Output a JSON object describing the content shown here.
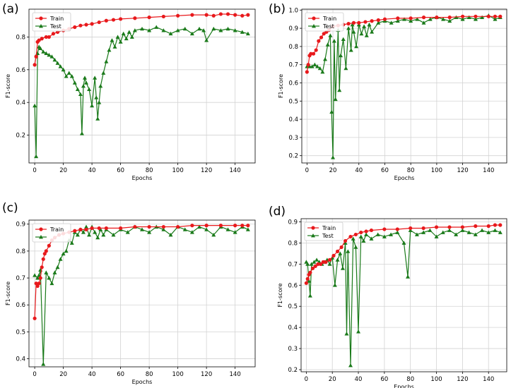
{
  "colors": {
    "train": "#e8191c",
    "test": "#1a7a1a",
    "grid": "#d3d3d3"
  },
  "chart_data": [
    {
      "panel": "(a)",
      "type": "line",
      "xlabel": "Epochs",
      "ylabel": "F1-score",
      "xlim": [
        -4,
        154
      ],
      "ylim": [
        0.03,
        0.97
      ],
      "xticks": [
        0,
        20,
        40,
        60,
        80,
        100,
        120,
        140
      ],
      "yticks": [
        0.2,
        0.4,
        0.6,
        0.8
      ],
      "legend": "top-left",
      "grid": true,
      "series": [
        {
          "name": "Train",
          "marker": "circle",
          "color": "#e8191c",
          "x": [
            0,
            1,
            2,
            3,
            5,
            8,
            10,
            13,
            16,
            20,
            24,
            28,
            32,
            36,
            40,
            45,
            50,
            55,
            60,
            70,
            80,
            90,
            100,
            110,
            120,
            125,
            130,
            135,
            140,
            145,
            149
          ],
          "y": [
            0.63,
            0.68,
            0.77,
            0.78,
            0.79,
            0.8,
            0.8,
            0.82,
            0.83,
            0.84,
            0.85,
            0.86,
            0.87,
            0.875,
            0.88,
            0.89,
            0.9,
            0.905,
            0.91,
            0.915,
            0.92,
            0.925,
            0.93,
            0.935,
            0.935,
            0.93,
            0.94,
            0.94,
            0.935,
            0.93,
            0.935
          ]
        },
        {
          "name": "Test",
          "marker": "triangle",
          "color": "#1a7a1a",
          "x": [
            0,
            1,
            2,
            3,
            4,
            6,
            8,
            10,
            12,
            14,
            16,
            18,
            20,
            22,
            24,
            26,
            28,
            30,
            32,
            33,
            34,
            35,
            36,
            38,
            40,
            42,
            43,
            44,
            45,
            46,
            48,
            50,
            52,
            54,
            56,
            58,
            60,
            62,
            64,
            66,
            68,
            70,
            75,
            80,
            85,
            90,
            95,
            100,
            105,
            110,
            115,
            118,
            120,
            125,
            130,
            135,
            140,
            145,
            149
          ],
          "y": [
            0.38,
            0.07,
            0.7,
            0.74,
            0.73,
            0.71,
            0.7,
            0.69,
            0.68,
            0.66,
            0.64,
            0.62,
            0.6,
            0.56,
            0.58,
            0.56,
            0.52,
            0.48,
            0.45,
            0.21,
            0.5,
            0.55,
            0.52,
            0.48,
            0.38,
            0.55,
            0.43,
            0.3,
            0.4,
            0.5,
            0.58,
            0.65,
            0.72,
            0.78,
            0.74,
            0.8,
            0.77,
            0.82,
            0.79,
            0.83,
            0.8,
            0.84,
            0.85,
            0.84,
            0.86,
            0.84,
            0.82,
            0.84,
            0.85,
            0.82,
            0.85,
            0.84,
            0.78,
            0.85,
            0.84,
            0.85,
            0.84,
            0.83,
            0.82
          ]
        }
      ]
    },
    {
      "panel": "(b)",
      "type": "line",
      "xlabel": "Epochs",
      "ylabel": "F1-score",
      "xlim": [
        -4,
        154
      ],
      "ylim": [
        0.16,
        1.005
      ],
      "xticks": [
        0,
        20,
        40,
        60,
        80,
        100,
        120,
        140
      ],
      "yticks": [
        0.2,
        0.3,
        0.4,
        0.5,
        0.6,
        0.7,
        0.8,
        0.9,
        1.0
      ],
      "legend": "top-left",
      "grid": true,
      "series": [
        {
          "name": "Train",
          "marker": "circle",
          "color": "#e8191c",
          "x": [
            0,
            1,
            2,
            3,
            5,
            7,
            9,
            11,
            13,
            15,
            17,
            20,
            24,
            28,
            32,
            36,
            40,
            45,
            50,
            55,
            60,
            70,
            80,
            90,
            100,
            110,
            120,
            130,
            140,
            145,
            149
          ],
          "y": [
            0.66,
            0.7,
            0.75,
            0.76,
            0.76,
            0.78,
            0.83,
            0.85,
            0.87,
            0.88,
            0.89,
            0.91,
            0.915,
            0.92,
            0.925,
            0.93,
            0.93,
            0.935,
            0.94,
            0.945,
            0.95,
            0.955,
            0.955,
            0.96,
            0.96,
            0.96,
            0.965,
            0.965,
            0.965,
            0.965,
            0.965
          ]
        },
        {
          "name": "Test",
          "marker": "triangle",
          "color": "#1a7a1a",
          "x": [
            0,
            2,
            4,
            6,
            8,
            10,
            12,
            14,
            16,
            18,
            19,
            20,
            21,
            22,
            24,
            25,
            26,
            28,
            30,
            32,
            34,
            35,
            36,
            38,
            40,
            42,
            44,
            46,
            48,
            50,
            55,
            60,
            65,
            70,
            75,
            80,
            85,
            90,
            95,
            100,
            105,
            110,
            115,
            120,
            125,
            130,
            135,
            140,
            145,
            149
          ],
          "y": [
            0.69,
            0.69,
            0.69,
            0.7,
            0.69,
            0.68,
            0.66,
            0.73,
            0.81,
            0.86,
            0.44,
            0.19,
            0.83,
            0.51,
            0.89,
            0.56,
            0.75,
            0.84,
            0.68,
            0.9,
            0.78,
            0.92,
            0.88,
            0.8,
            0.92,
            0.87,
            0.91,
            0.86,
            0.92,
            0.88,
            0.93,
            0.94,
            0.93,
            0.94,
            0.95,
            0.94,
            0.95,
            0.93,
            0.95,
            0.96,
            0.95,
            0.94,
            0.96,
            0.95,
            0.96,
            0.95,
            0.96,
            0.97,
            0.95,
            0.96
          ]
        }
      ]
    },
    {
      "panel": "(c)",
      "type": "line",
      "xlabel": "Epochs",
      "ylabel": "F1-score",
      "xlim": [
        -4,
        154
      ],
      "ylim": [
        0.37,
        0.915
      ],
      "xticks": [
        0,
        20,
        40,
        60,
        80,
        100,
        120,
        140
      ],
      "yticks": [
        0.4,
        0.5,
        0.6,
        0.7,
        0.8,
        0.9
      ],
      "legend": "top-left",
      "grid": true,
      "series": [
        {
          "name": "Train",
          "marker": "circle",
          "color": "#e8191c",
          "x": [
            0,
            1,
            2,
            3,
            4,
            5,
            6,
            7,
            8,
            10,
            12,
            14,
            17,
            20,
            24,
            28,
            32,
            36,
            40,
            45,
            50,
            60,
            70,
            80,
            90,
            100,
            110,
            120,
            130,
            140,
            145,
            149
          ],
          "y": [
            0.55,
            0.68,
            0.67,
            0.68,
            0.7,
            0.74,
            0.77,
            0.79,
            0.8,
            0.82,
            0.84,
            0.85,
            0.86,
            0.865,
            0.87,
            0.875,
            0.88,
            0.88,
            0.885,
            0.885,
            0.885,
            0.885,
            0.89,
            0.89,
            0.89,
            0.89,
            0.895,
            0.895,
            0.895,
            0.895,
            0.895,
            0.895
          ]
        },
        {
          "name": "",
          "marker": "triangle",
          "color": "#1a7a1a",
          "x": [
            0,
            2,
            3,
            4,
            6,
            8,
            10,
            12,
            14,
            16,
            18,
            20,
            22,
            24,
            26,
            28,
            30,
            32,
            34,
            36,
            38,
            40,
            42,
            44,
            46,
            48,
            50,
            55,
            60,
            65,
            70,
            75,
            80,
            85,
            90,
            95,
            100,
            105,
            110,
            115,
            120,
            125,
            130,
            135,
            140,
            145,
            149
          ],
          "y": [
            0.71,
            0.7,
            0.71,
            0.73,
            0.38,
            0.72,
            0.7,
            0.68,
            0.72,
            0.74,
            0.77,
            0.79,
            0.8,
            0.84,
            0.83,
            0.87,
            0.86,
            0.88,
            0.87,
            0.89,
            0.86,
            0.89,
            0.87,
            0.85,
            0.88,
            0.86,
            0.88,
            0.86,
            0.88,
            0.87,
            0.89,
            0.88,
            0.87,
            0.89,
            0.88,
            0.86,
            0.89,
            0.88,
            0.87,
            0.89,
            0.88,
            0.86,
            0.89,
            0.88,
            0.87,
            0.89,
            0.88
          ]
        }
      ]
    },
    {
      "panel": "(d)",
      "type": "line",
      "xlabel": "Epochs",
      "ylabel": "F1-score",
      "xlim": [
        -4,
        154
      ],
      "ylim": [
        0.19,
        0.915
      ],
      "xticks": [
        0,
        20,
        40,
        60,
        80,
        100,
        120,
        140
      ],
      "yticks": [
        0.2,
        0.3,
        0.4,
        0.5,
        0.6,
        0.7,
        0.8,
        0.9
      ],
      "legend": "top-left",
      "grid": true,
      "series": [
        {
          "name": "Train",
          "marker": "circle",
          "color": "#e8191c",
          "x": [
            0,
            1,
            2,
            3,
            5,
            7,
            9,
            11,
            13,
            15,
            18,
            21,
            24,
            27,
            30,
            34,
            38,
            42,
            46,
            50,
            60,
            70,
            80,
            90,
            100,
            110,
            120,
            130,
            140,
            145,
            149
          ],
          "y": [
            0.61,
            0.63,
            0.65,
            0.66,
            0.68,
            0.69,
            0.7,
            0.7,
            0.71,
            0.71,
            0.72,
            0.74,
            0.76,
            0.78,
            0.81,
            0.83,
            0.84,
            0.85,
            0.855,
            0.86,
            0.865,
            0.865,
            0.87,
            0.87,
            0.875,
            0.875,
            0.875,
            0.88,
            0.88,
            0.885,
            0.885
          ]
        },
        {
          "name": "Test",
          "marker": "triangle",
          "color": "#1a7a1a",
          "x": [
            0,
            1,
            2,
            3,
            4,
            6,
            8,
            10,
            12,
            14,
            16,
            18,
            20,
            22,
            24,
            26,
            28,
            30,
            31,
            32,
            34,
            36,
            38,
            40,
            42,
            44,
            46,
            50,
            55,
            60,
            65,
            70,
            75,
            78,
            80,
            85,
            90,
            95,
            100,
            105,
            110,
            115,
            120,
            125,
            130,
            135,
            140,
            145,
            149
          ],
          "y": [
            0.71,
            0.7,
            0.62,
            0.55,
            0.7,
            0.71,
            0.72,
            0.71,
            0.7,
            0.71,
            0.72,
            0.7,
            0.73,
            0.6,
            0.72,
            0.75,
            0.68,
            0.8,
            0.37,
            0.76,
            0.22,
            0.82,
            0.78,
            0.38,
            0.83,
            0.81,
            0.84,
            0.82,
            0.84,
            0.83,
            0.84,
            0.85,
            0.8,
            0.64,
            0.86,
            0.84,
            0.85,
            0.86,
            0.83,
            0.85,
            0.86,
            0.84,
            0.86,
            0.85,
            0.84,
            0.86,
            0.85,
            0.86,
            0.85
          ]
        }
      ]
    }
  ]
}
